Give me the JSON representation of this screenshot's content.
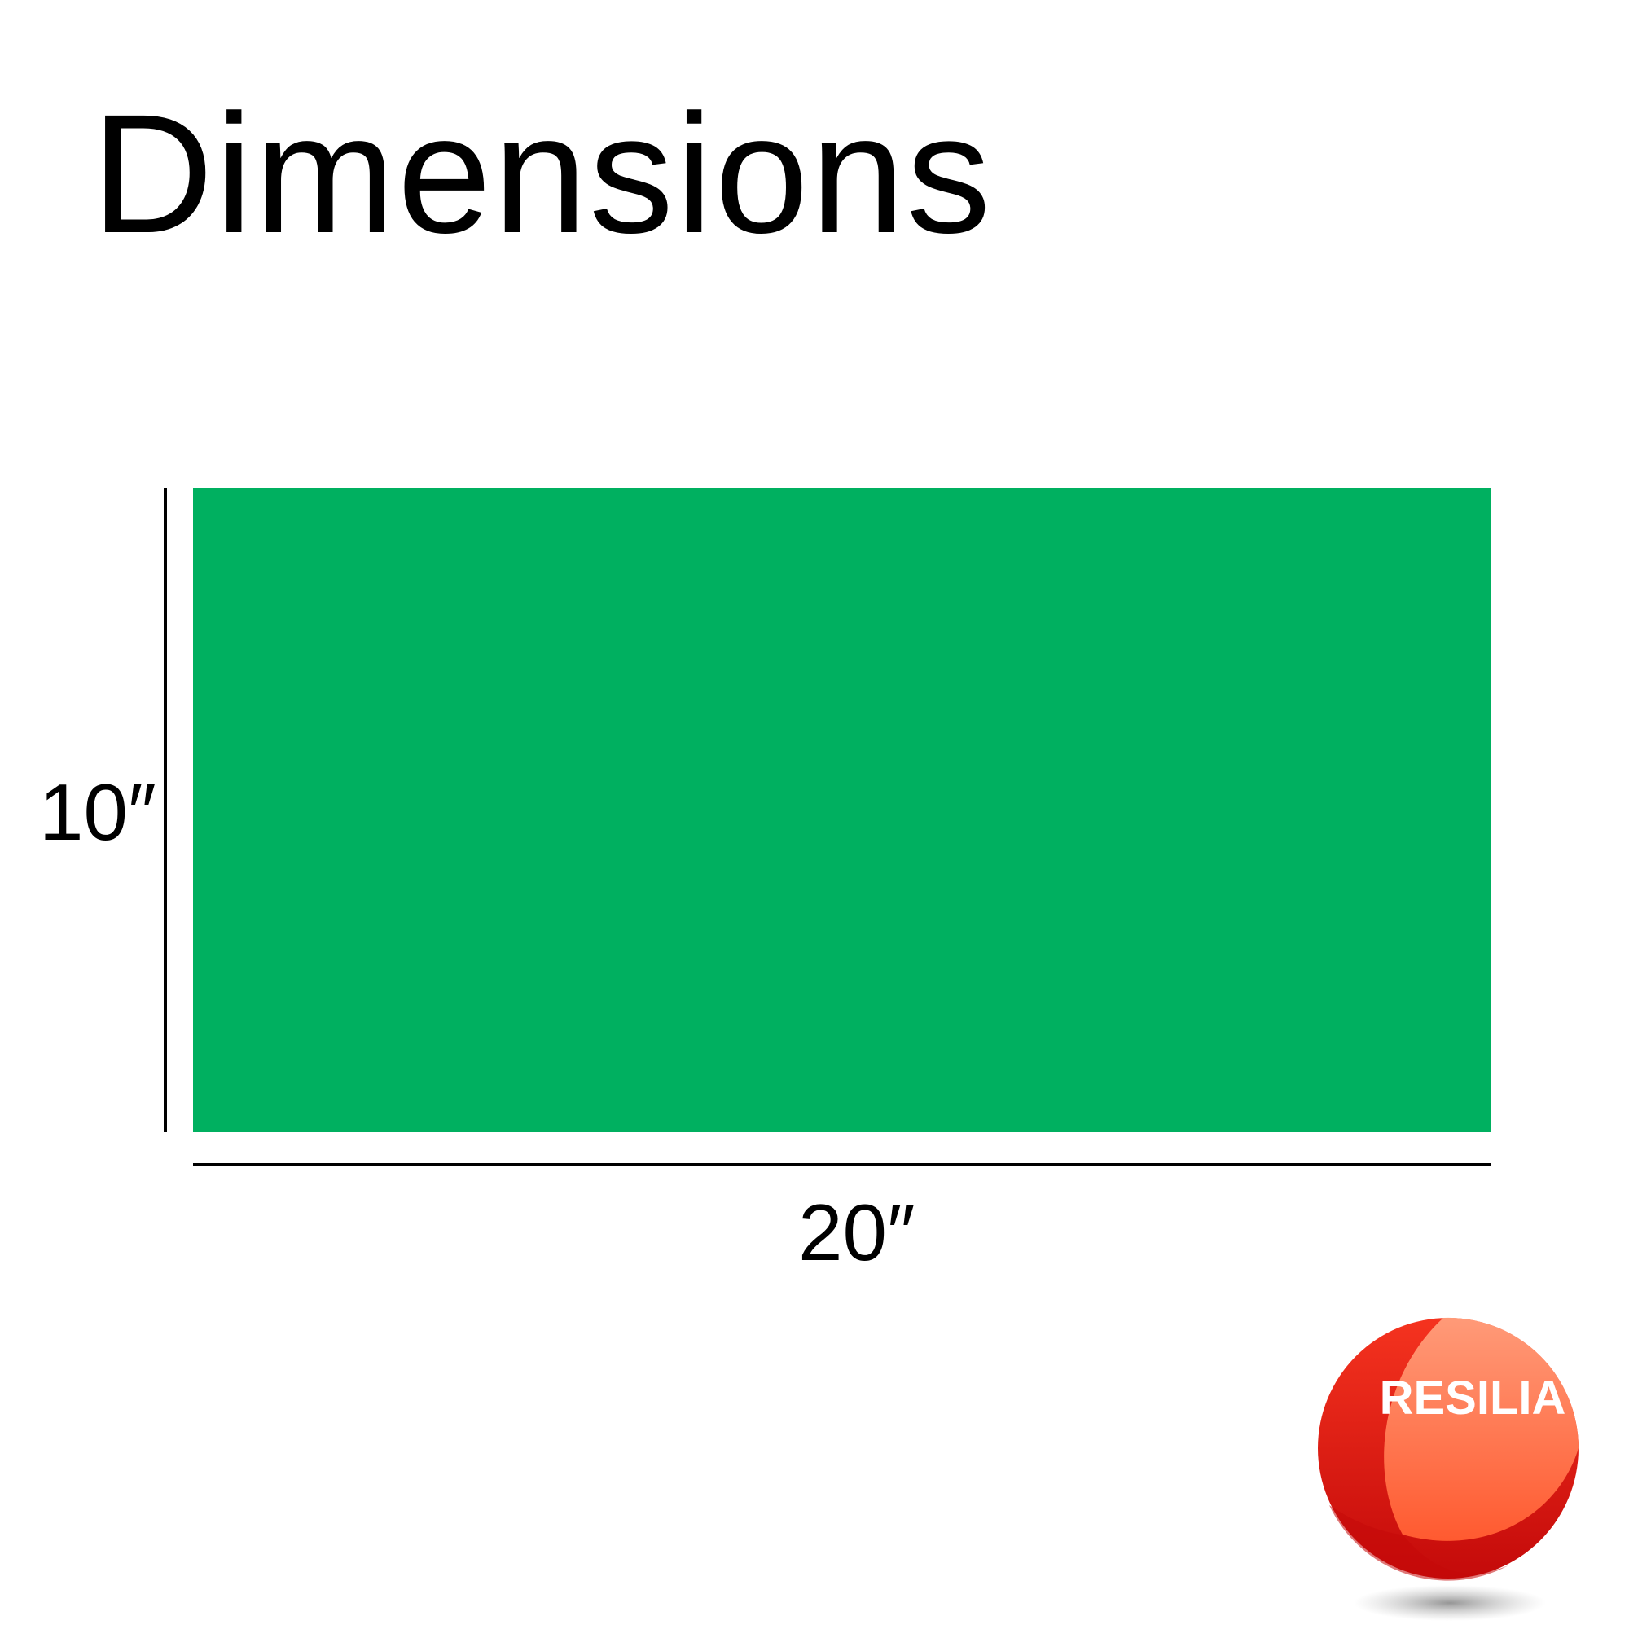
{
  "title": "Dimensions",
  "colors": {
    "rectangle": "#00b060",
    "logo_primary": "#f5331f",
    "logo_dark": "#c40a0a",
    "logo_light": "#ff8a6a"
  },
  "dimensions": {
    "height_label": "10″",
    "width_label": "20″"
  },
  "logo": {
    "text": "RESILIA"
  }
}
